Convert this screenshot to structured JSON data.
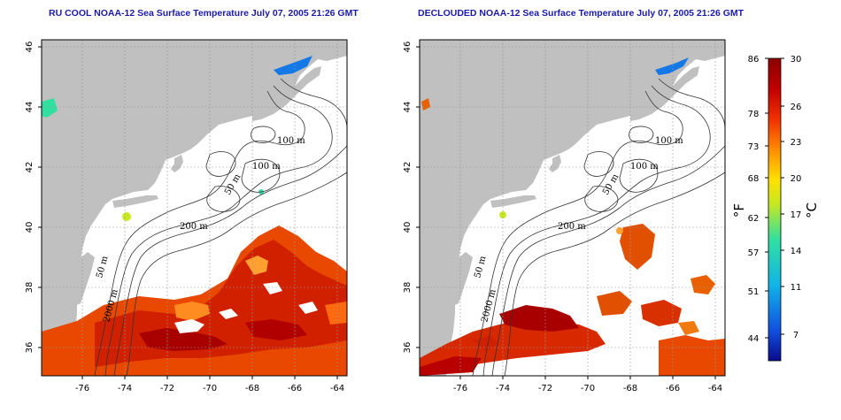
{
  "titles": {
    "left": "RU COOL NOAA-12 Sea Surface Temperature July 07, 2005 21:26 GMT",
    "right": "DECLOUDED NOAA-12 Sea Surface Temperature July 07, 2005 21:26 GMT"
  },
  "maps": {
    "lon_ticks": [
      "-76",
      "-74",
      "-72",
      "-70",
      "-68",
      "-66",
      "-64"
    ],
    "lat_ticks": [
      "36",
      "38",
      "40",
      "42",
      "44",
      "46"
    ],
    "lon_range": [
      -77.2,
      -62.9
    ],
    "lat_range": [
      35.0,
      46.2
    ],
    "contour_labels": [
      "100 m",
      "100 m",
      "50 m",
      "200 m",
      "50 m",
      "2000 m"
    ]
  },
  "colorbar": {
    "fahrenheit_label": "°F",
    "celsius_label": "°C",
    "fahrenheit_ticks": [
      "86",
      "78",
      "73",
      "68",
      "62",
      "57",
      "51",
      "44"
    ],
    "celsius_ticks": [
      "30",
      "26",
      "23",
      "20",
      "17",
      "14",
      "11",
      "7"
    ],
    "colors": [
      "#0a0a8c",
      "#1050e0",
      "#10b4e8",
      "#30e0a0",
      "#c8e820",
      "#ffe000",
      "#ff8a00",
      "#f03000",
      "#c00000",
      "#8c0000"
    ]
  },
  "colors": {
    "land": "#c0c0c0",
    "water_nodata": "#ffffff",
    "grid": "#9a9a9a",
    "title": "#1a1aa8"
  }
}
